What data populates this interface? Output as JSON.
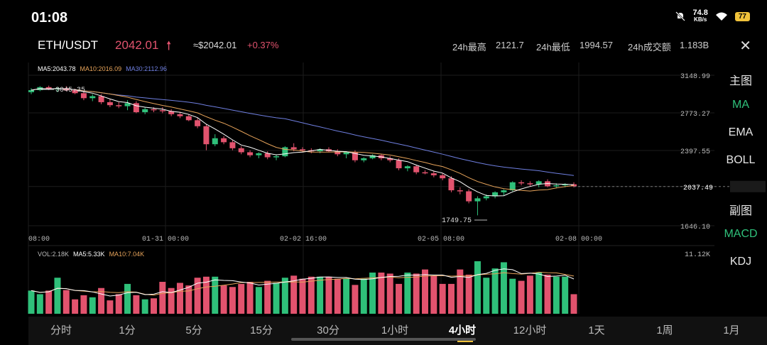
{
  "status": {
    "time": "01:08",
    "net_speed": "74.8",
    "net_unit": "KB/s",
    "battery": "77"
  },
  "header": {
    "pair": "ETH/USDT",
    "price": "2042.01",
    "approx": "≈$2042.01",
    "change": "+0.37%",
    "high_label": "24h最高",
    "high": "2121.7",
    "low_label": "24h最低",
    "low": "1994.57",
    "vol_label": "24h成交额",
    "vol": "1.183B"
  },
  "legend": {
    "ma5": "MA5:2043.78",
    "ma10": "MA10:2016.09",
    "ma30": "MA30:2112.96"
  },
  "vol_legend": {
    "vol": "VOL:2.18K",
    "ma5": "MA5:5.33K",
    "ma10": "MA10:7.04K"
  },
  "colors": {
    "up": "#2fc07a",
    "down": "#e2536e",
    "ma5": "#ffffff",
    "ma10": "#e6a35a",
    "ma30": "#6f7fe0",
    "accent": "#f0c23a"
  },
  "sidebar": [
    {
      "label": "主图",
      "active": false
    },
    {
      "label": "MA",
      "active": true
    },
    {
      "label": "EMA",
      "active": false
    },
    {
      "label": "BOLL",
      "active": false
    },
    {
      "label": "副图",
      "active": false
    },
    {
      "label": "MACD",
      "active": true
    },
    {
      "label": "KDJ",
      "active": false
    }
  ],
  "timeframes": [
    {
      "label": "分时"
    },
    {
      "label": "1分"
    },
    {
      "label": "5分"
    },
    {
      "label": "15分"
    },
    {
      "label": "30分"
    },
    {
      "label": "1小时"
    },
    {
      "label": "4小时",
      "active": true
    },
    {
      "label": "12小时"
    },
    {
      "label": "1天"
    },
    {
      "label": "1周"
    },
    {
      "label": "1月"
    }
  ],
  "chart_data": {
    "type": "candlestick",
    "price_axis": {
      "ticks": [
        "3148.99",
        "2773.27",
        "2397.55",
        "2037.49",
        "1646.10"
      ],
      "range": [
        1646.1,
        3148.99
      ]
    },
    "current_price_label": "2037.49",
    "annotations": {
      "high": "3045.35",
      "low": "1749.75"
    },
    "time_axis": [
      "08:00",
      "01-31 00:00",
      "02-02 16:00",
      "02-05 08:00",
      "02-08 00:00"
    ],
    "volume_axis_max": "11.12K",
    "candles": [
      [
        2980,
        3020,
        2960,
        3000
      ],
      [
        3000,
        3040,
        2990,
        3030
      ],
      [
        3030,
        3045.35,
        3000,
        3010
      ],
      [
        3010,
        3030,
        2980,
        3020
      ],
      [
        3020,
        3040,
        2990,
        3000
      ],
      [
        3000,
        3015,
        2960,
        2970
      ],
      [
        2970,
        2985,
        2900,
        2920
      ],
      [
        2920,
        2960,
        2890,
        2940
      ],
      [
        2940,
        2960,
        2860,
        2880
      ],
      [
        2880,
        2910,
        2830,
        2850
      ],
      [
        2850,
        2880,
        2820,
        2840
      ],
      [
        2840,
        2900,
        2800,
        2870
      ],
      [
        2870,
        2890,
        2770,
        2780
      ],
      [
        2780,
        2830,
        2760,
        2810
      ],
      [
        2810,
        2830,
        2780,
        2800
      ],
      [
        2800,
        2830,
        2770,
        2790
      ],
      [
        2790,
        2810,
        2740,
        2760
      ],
      [
        2760,
        2780,
        2720,
        2740
      ],
      [
        2740,
        2760,
        2690,
        2700
      ],
      [
        2700,
        2720,
        2620,
        2640
      ],
      [
        2640,
        2660,
        2400,
        2460
      ],
      [
        2460,
        2560,
        2440,
        2520
      ],
      [
        2520,
        2540,
        2460,
        2480
      ],
      [
        2480,
        2500,
        2400,
        2420
      ],
      [
        2420,
        2440,
        2360,
        2380
      ],
      [
        2380,
        2400,
        2330,
        2350
      ],
      [
        2350,
        2380,
        2320,
        2370
      ],
      [
        2370,
        2390,
        2310,
        2330
      ],
      [
        2330,
        2360,
        2300,
        2340
      ],
      [
        2340,
        2440,
        2330,
        2430
      ],
      [
        2430,
        2470,
        2390,
        2410
      ],
      [
        2410,
        2430,
        2380,
        2400
      ],
      [
        2400,
        2420,
        2370,
        2390
      ],
      [
        2390,
        2420,
        2370,
        2410
      ],
      [
        2410,
        2430,
        2380,
        2390
      ],
      [
        2390,
        2410,
        2340,
        2360
      ],
      [
        2360,
        2390,
        2320,
        2380
      ],
      [
        2380,
        2400,
        2280,
        2300
      ],
      [
        2300,
        2330,
        2280,
        2320
      ],
      [
        2320,
        2360,
        2310,
        2350
      ],
      [
        2350,
        2360,
        2300,
        2320
      ],
      [
        2320,
        2340,
        2280,
        2300
      ],
      [
        2300,
        2320,
        2200,
        2220
      ],
      [
        2220,
        2250,
        2190,
        2240
      ],
      [
        2240,
        2250,
        2160,
        2180
      ],
      [
        2180,
        2200,
        2160,
        2170
      ],
      [
        2170,
        2190,
        2130,
        2150
      ],
      [
        2150,
        2170,
        2100,
        2120
      ],
      [
        2120,
        2140,
        1980,
        2000
      ],
      [
        2000,
        2030,
        1960,
        1990
      ],
      [
        1990,
        2010,
        1870,
        1890
      ],
      [
        1890,
        1940,
        1749.75,
        1920
      ],
      [
        1920,
        1960,
        1900,
        1940
      ],
      [
        1940,
        1990,
        1920,
        1980
      ],
      [
        1980,
        2010,
        1950,
        2000
      ],
      [
        2000,
        2090,
        1990,
        2080
      ],
      [
        2080,
        2100,
        2050,
        2070
      ],
      [
        2070,
        2090,
        2040,
        2060
      ],
      [
        2060,
        2100,
        2030,
        2090
      ],
      [
        2090,
        2110,
        2030,
        2040
      ],
      [
        2040,
        2070,
        2020,
        2050
      ],
      [
        2050,
        2070,
        2030,
        2060
      ],
      [
        2060,
        2080,
        2030,
        2040
      ]
    ],
    "volumes": [
      45,
      38,
      45,
      70,
      46,
      28,
      36,
      32,
      50,
      26,
      38,
      58,
      36,
      28,
      30,
      62,
      50,
      60,
      55,
      70,
      72,
      72,
      55,
      52,
      58,
      62,
      52,
      64,
      60,
      70,
      74,
      68,
      72,
      72,
      72,
      68,
      68,
      56,
      68,
      80,
      80,
      78,
      58,
      80,
      78,
      86,
      74,
      58,
      58,
      86,
      76,
      102,
      70,
      88,
      100,
      68,
      64,
      74,
      80,
      76,
      72,
      72,
      38
    ]
  }
}
